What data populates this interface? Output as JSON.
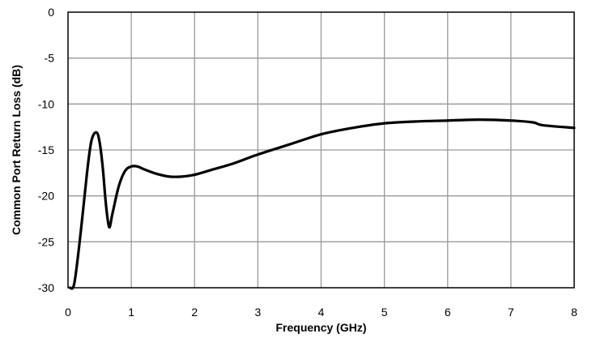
{
  "chart_data": {
    "type": "line",
    "title": "",
    "xlabel": "Frequency (GHz)",
    "ylabel": "Common Port Return Loss (dB)",
    "xlim": [
      0,
      8
    ],
    "ylim": [
      -30,
      0
    ],
    "xticks": [
      "0",
      "1",
      "2",
      "3",
      "4",
      "5",
      "6",
      "7",
      "8"
    ],
    "yticks": [
      "0",
      "-5",
      "-10",
      "-15",
      "-20",
      "-25",
      "-30"
    ],
    "grid": true,
    "legend": "none",
    "series": [
      {
        "color": "#000000",
        "x": [
          0.03,
          0.1,
          0.2,
          0.3,
          0.37,
          0.45,
          0.5,
          0.55,
          0.6,
          0.65,
          0.7,
          0.8,
          0.9,
          1.0,
          1.1,
          1.2,
          1.4,
          1.6,
          1.8,
          2.0,
          2.3,
          2.6,
          3.0,
          3.5,
          4.0,
          4.5,
          5.0,
          5.5,
          6.0,
          6.5,
          7.0,
          7.35,
          7.5,
          8.0
        ],
        "y": [
          -30.0,
          -29.5,
          -24.0,
          -17.5,
          -14.0,
          -13.1,
          -14.2,
          -17.0,
          -21.0,
          -23.4,
          -22.0,
          -19.0,
          -17.3,
          -16.8,
          -16.8,
          -17.1,
          -17.6,
          -17.9,
          -17.9,
          -17.7,
          -17.1,
          -16.5,
          -15.5,
          -14.4,
          -13.3,
          -12.6,
          -12.1,
          -11.9,
          -11.8,
          -11.7,
          -11.8,
          -12.0,
          -12.3,
          -12.6
        ]
      }
    ]
  }
}
